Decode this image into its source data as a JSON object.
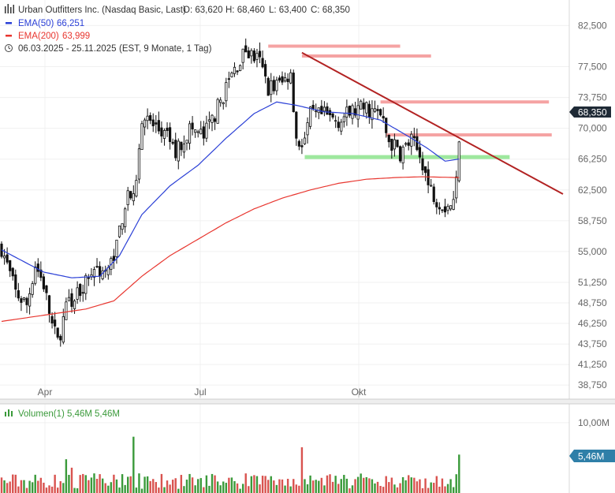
{
  "legend": {
    "title": "Urban Outfitters Inc. (Nasdaq Basic, Last)",
    "open_label": "O: 63,620",
    "high_label": "H: 68,460",
    "low_label": "L: 63,400",
    "close_label": "C: 68,350",
    "ema50_name": "EMA(50)",
    "ema50_value": "66,251",
    "ema200_name": "EMA(200)",
    "ema200_value": "63,999",
    "period": "06.03.2025 - 25.11.2025",
    "period_detail": "(EST, 9 Monate, 1 Tag)"
  },
  "volume_legend": {
    "name": "Volumen(1)",
    "value1": "5,46M",
    "value2": "5,46M"
  },
  "price_badge": "68,350",
  "volume_badge": "5,46M",
  "colors": {
    "up": "#222222",
    "ema50": "#2a3fd6",
    "ema200": "#e8362f",
    "trendline": "#b22222",
    "resistance": "#f5a3a3",
    "support": "#9ee89e",
    "vol_up": "#3a9a3a",
    "vol_down": "#d9534f",
    "badge": "#2f7fa8"
  },
  "chart_data": {
    "type": "candlestick",
    "y_ticks": [
      "82,500",
      "77,500",
      "73,750",
      "70,000",
      "66,250",
      "62,500",
      "58,750",
      "55,000",
      "51,250",
      "48,750",
      "46,250",
      "43,750",
      "41,250",
      "38,750"
    ],
    "ylim": [
      38.0,
      83.5
    ],
    "x_labels": [
      "Apr",
      "Jul",
      "Okt"
    ],
    "volume_ticks": [
      "10,00M"
    ],
    "volume_ylim": [
      0,
      12
    ],
    "anchors": [
      [
        0,
        55.5
      ],
      [
        5,
        50.0
      ],
      [
        9,
        48.5
      ],
      [
        12,
        53.5
      ],
      [
        15,
        51.0
      ],
      [
        18,
        46.0
      ],
      [
        20,
        44.0
      ],
      [
        23,
        48.0
      ],
      [
        28,
        50.5
      ],
      [
        33,
        53.0
      ],
      [
        38,
        52.5
      ],
      [
        41,
        56.0
      ],
      [
        45,
        62.5
      ],
      [
        47,
        61.0
      ],
      [
        50,
        71.5
      ],
      [
        55,
        70.0
      ],
      [
        60,
        68.5
      ],
      [
        62,
        67.0
      ],
      [
        67,
        70.0
      ],
      [
        72,
        69.0
      ],
      [
        77,
        72.5
      ],
      [
        82,
        76.5
      ],
      [
        87,
        79.5
      ],
      [
        92,
        78.0
      ],
      [
        95,
        75.0
      ],
      [
        100,
        75.5
      ],
      [
        103,
        77.0
      ],
      [
        105,
        69.0
      ],
      [
        107,
        67.5
      ],
      [
        110,
        71.5
      ],
      [
        115,
        71.5
      ],
      [
        120,
        71.0
      ],
      [
        125,
        72.0
      ],
      [
        130,
        72.5
      ],
      [
        135,
        71.5
      ],
      [
        138,
        68.5
      ],
      [
        142,
        67.0
      ],
      [
        146,
        68.5
      ],
      [
        150,
        66.0
      ],
      [
        152,
        63.0
      ],
      [
        155,
        61.5
      ],
      [
        158,
        60.5
      ],
      [
        161,
        61.0
      ],
      [
        162,
        63.6
      ],
      [
        163,
        68.35
      ]
    ],
    "ema50": [
      [
        0,
        55.2
      ],
      [
        15,
        52.5
      ],
      [
        25,
        51.8
      ],
      [
        35,
        52.0
      ],
      [
        42,
        54.5
      ],
      [
        50,
        59.5
      ],
      [
        60,
        63.0
      ],
      [
        70,
        65.5
      ],
      [
        80,
        68.8
      ],
      [
        90,
        71.8
      ],
      [
        98,
        73.2
      ],
      [
        105,
        72.8
      ],
      [
        115,
        72.0
      ],
      [
        125,
        71.8
      ],
      [
        135,
        71.0
      ],
      [
        145,
        69.0
      ],
      [
        152,
        67.5
      ],
      [
        158,
        66.0
      ],
      [
        163,
        66.25
      ]
    ],
    "ema200": [
      [
        0,
        46.5
      ],
      [
        10,
        47.0
      ],
      [
        20,
        47.5
      ],
      [
        30,
        48.0
      ],
      [
        40,
        49.0
      ],
      [
        50,
        52.0
      ],
      [
        60,
        54.5
      ],
      [
        70,
        56.5
      ],
      [
        80,
        58.5
      ],
      [
        90,
        60.2
      ],
      [
        100,
        61.5
      ],
      [
        110,
        62.5
      ],
      [
        120,
        63.3
      ],
      [
        130,
        63.8
      ],
      [
        140,
        64.0
      ],
      [
        150,
        64.1
      ],
      [
        163,
        64.0
      ]
    ],
    "trendline": [
      [
        107,
        79.2
      ],
      [
        200,
        62.0
      ]
    ],
    "resistance_lines": [
      {
        "x": [
          95,
          142
        ],
        "y": 80.0
      },
      {
        "x": [
          107,
          153
        ],
        "y": 78.8
      },
      {
        "x": [
          135,
          195
        ],
        "y": 73.2
      },
      {
        "x": [
          137,
          196
        ],
        "y": 69.2
      }
    ],
    "support_lines": [
      {
        "x": [
          108,
          181
        ],
        "y": 66.5
      }
    ],
    "volume": {
      "base": 1.0,
      "spikes": [
        [
          23,
          4.8
        ],
        [
          25,
          3.6
        ],
        [
          47,
          8.0
        ],
        [
          107,
          6.5
        ],
        [
          163,
          5.46
        ]
      ]
    }
  }
}
